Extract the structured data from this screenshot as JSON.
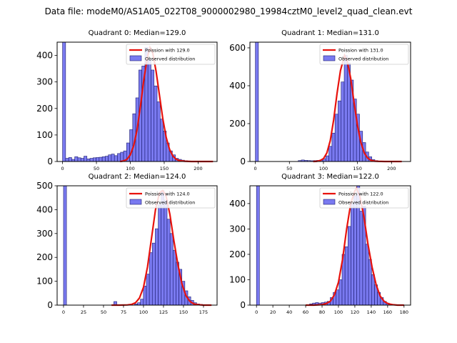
{
  "chart_data": {
    "type": "histogram-grid",
    "suptitle": "Data file: modeM0/AS1A05_022T08_9000002980_19984cztM0_level2_quad_clean.evt",
    "colors": {
      "bar_fill": "#7a7af0",
      "bar_edge": "#1a1a6e",
      "fit_line": "#e8120c"
    },
    "panels": [
      {
        "title": "Quadrant 0: Median=129.0",
        "median": 129.0,
        "xlim": [
          -8,
          228
        ],
        "ylim": [
          0,
          450
        ],
        "xticks": [
          0,
          50,
          100,
          150,
          200
        ],
        "yticks": [
          0,
          100,
          200,
          300,
          400
        ],
        "legend": {
          "fit": "Poission with 129.0",
          "observed": "Observed distribution",
          "loc": "upper right"
        },
        "bin_width": 4.5,
        "bins_x": [
          0,
          4.5,
          9,
          13.5,
          18,
          22.5,
          27,
          31.5,
          36,
          40.5,
          45,
          49.5,
          54,
          58.5,
          63,
          67.5,
          72,
          76.5,
          81,
          85.5,
          90,
          94.5,
          99,
          103.5,
          108,
          112.5,
          117,
          121.5,
          126,
          130.5,
          135,
          139.5,
          144,
          148.5,
          153,
          157.5,
          162,
          166.5,
          171,
          175.5,
          180,
          184.5,
          189,
          193.5,
          198,
          202.5,
          207,
          211.5,
          216,
          220.5
        ],
        "bins_y": [
          450,
          12,
          15,
          8,
          18,
          14,
          12,
          20,
          10,
          12,
          14,
          15,
          16,
          18,
          20,
          25,
          28,
          22,
          30,
          35,
          40,
          70,
          120,
          180,
          240,
          345,
          360,
          430,
          385,
          345,
          285,
          225,
          160,
          115,
          70,
          40,
          25,
          12,
          8,
          5,
          3,
          2,
          1,
          1,
          0,
          0,
          0,
          0,
          0,
          0
        ],
        "fit_x": [
          85,
          90,
          95,
          100,
          105,
          110,
          115,
          120,
          125,
          129,
          133,
          138,
          143,
          148,
          153,
          158,
          163,
          168,
          173,
          180,
          190,
          200,
          210,
          222
        ],
        "fit_y": [
          0,
          2,
          8,
          25,
          60,
          120,
          210,
          310,
          390,
          430,
          410,
          340,
          250,
          160,
          90,
          45,
          20,
          8,
          3,
          1,
          0,
          0,
          0,
          0
        ]
      },
      {
        "title": "Quadrant 1: Median=131.0",
        "median": 131.0,
        "xlim": [
          -8,
          228
        ],
        "ylim": [
          0,
          630
        ],
        "xticks": [
          0,
          50,
          100,
          150,
          200
        ],
        "yticks": [
          0,
          200,
          400,
          600
        ],
        "legend": {
          "fit": "Poission with 131.0",
          "observed": "Observed distribution",
          "loc": "upper right"
        },
        "bin_width": 4.5,
        "bins_x": [
          0,
          4.5,
          63,
          67.5,
          72,
          76.5,
          81,
          85.5,
          90,
          94.5,
          99,
          103.5,
          108,
          112.5,
          117,
          121.5,
          126,
          130.5,
          135,
          139.5,
          144,
          148.5,
          153,
          157.5,
          162,
          166.5,
          171,
          175.5,
          180,
          184.5
        ],
        "bins_y": [
          630,
          0,
          5,
          8,
          6,
          5,
          4,
          5,
          6,
          8,
          15,
          30,
          80,
          150,
          250,
          320,
          420,
          560,
          520,
          430,
          330,
          250,
          160,
          100,
          50,
          25,
          10,
          5,
          2,
          1
        ],
        "fit_x": [
          85,
          90,
          95,
          100,
          105,
          110,
          115,
          120,
          125,
          131,
          135,
          140,
          145,
          150,
          155,
          160,
          165,
          170,
          175,
          180,
          190,
          200,
          215
        ],
        "fit_y": [
          0,
          1,
          5,
          15,
          45,
          110,
          220,
          360,
          480,
          560,
          530,
          440,
          310,
          190,
          100,
          45,
          18,
          6,
          2,
          1,
          0,
          0,
          0
        ]
      },
      {
        "title": "Quadrant 2: Median=124.0",
        "median": 124.0,
        "xlim": [
          -8,
          192
        ],
        "ylim": [
          0,
          500
        ],
        "xticks": [
          0,
          25,
          50,
          75,
          100,
          125,
          150,
          175
        ],
        "yticks": [
          0,
          100,
          200,
          300,
          400,
          500
        ],
        "legend": {
          "fit": "Poission with 124.0",
          "observed": "Observed distribution",
          "loc": "upper right"
        },
        "bin_width": 3.7,
        "bins_x": [
          0,
          62.9,
          88.8,
          92.5,
          96.2,
          99.9,
          103.6,
          107.3,
          111,
          114.7,
          118.4,
          122.1,
          125.8,
          129.5,
          133.2,
          136.9,
          140.6,
          144.3,
          148,
          151.7,
          155.4,
          159.1,
          162.8,
          166.5,
          170.2,
          173.9
        ],
        "bins_y": [
          500,
          15,
          5,
          10,
          25,
          80,
          130,
          220,
          260,
          320,
          420,
          480,
          440,
          360,
          300,
          230,
          180,
          150,
          100,
          60,
          35,
          20,
          10,
          5,
          3,
          1
        ],
        "fit_x": [
          60,
          70,
          80,
          85,
          90,
          95,
          100,
          105,
          110,
          115,
          120,
          124,
          128,
          133,
          138,
          143,
          148,
          153,
          158,
          163,
          168,
          175,
          185
        ],
        "fit_y": [
          0,
          0,
          1,
          3,
          10,
          30,
          75,
          160,
          280,
          400,
          470,
          480,
          460,
          380,
          270,
          170,
          90,
          40,
          16,
          5,
          2,
          0,
          0
        ]
      },
      {
        "title": "Quadrant 3: Median=122.0",
        "median": 122.0,
        "xlim": [
          -8,
          188
        ],
        "ylim": [
          0,
          470
        ],
        "xticks": [
          0,
          20,
          40,
          60,
          80,
          100,
          120,
          140,
          160,
          180
        ],
        "yticks": [
          0,
          100,
          200,
          300,
          400
        ],
        "legend": {
          "fit": "Poission with 122.0",
          "observed": "Observed distribution",
          "loc": "upper right"
        },
        "bin_width": 3.6,
        "bins_x": [
          0,
          3.6,
          64.8,
          68.4,
          72,
          75.6,
          79.2,
          82.8,
          86.4,
          90,
          93.6,
          97.2,
          100.8,
          104.4,
          108,
          111.6,
          115.2,
          118.8,
          122.4,
          126,
          129.6,
          133.2,
          136.8,
          140.4,
          144,
          147.6,
          151.2,
          154.8,
          158.4,
          162
        ],
        "bins_y": [
          470,
          0,
          5,
          8,
          10,
          8,
          10,
          12,
          15,
          30,
          50,
          60,
          100,
          200,
          230,
          310,
          400,
          430,
          470,
          370,
          390,
          240,
          180,
          120,
          80,
          50,
          30,
          15,
          8,
          4
        ],
        "fit_x": [
          60,
          70,
          80,
          85,
          90,
          95,
          100,
          105,
          110,
          115,
          120,
          122,
          126,
          131,
          136,
          141,
          146,
          151,
          156,
          161,
          166,
          172,
          180
        ],
        "fit_y": [
          0,
          0,
          2,
          6,
          15,
          40,
          90,
          180,
          300,
          400,
          450,
          460,
          430,
          350,
          240,
          150,
          80,
          35,
          14,
          5,
          2,
          0,
          0
        ]
      }
    ]
  }
}
